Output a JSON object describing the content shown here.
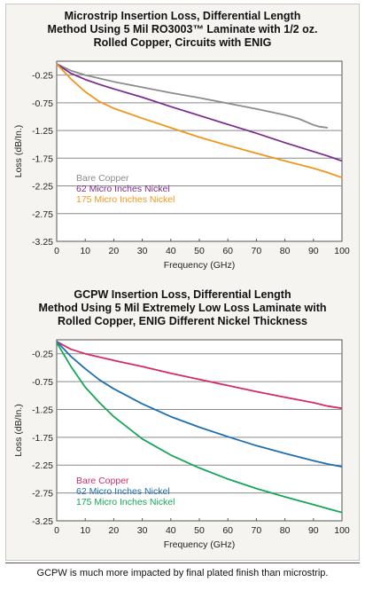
{
  "chart_data": [
    {
      "type": "line",
      "title": "Microstrip Insertion Loss, Differential Length Method Using 5 Mil RO3003™ Laminate with 1/2 oz. Rolled Copper, Circuits with ENIG",
      "title_lines": [
        "Microstrip Insertion Loss, Differential Length",
        "Method Using 5 Mil RO3003™ Laminate with 1/2 oz.",
        "Rolled Copper, Circuits with ENIG"
      ],
      "xlabel": "Frequency (GHz)",
      "ylabel": "Loss (dB/In.)",
      "xlim": [
        0,
        100
      ],
      "ylim": [
        -3.25,
        0
      ],
      "x_ticks": [
        "0",
        "10",
        "20",
        "30",
        "40",
        "50",
        "60",
        "70",
        "80",
        "90",
        "100"
      ],
      "y_ticks": [
        "-0.25",
        "-0.75",
        "-1.25",
        "-1.75",
        "-2.25",
        "-2.75",
        "-3.25"
      ],
      "grid": "horizontal",
      "legend_position": "middle-left",
      "series": [
        {
          "name": "Bare Copper",
          "color": "#8c8c8c",
          "x": [
            0,
            5,
            10,
            15,
            20,
            30,
            40,
            50,
            60,
            70,
            80,
            85,
            90,
            92,
            95
          ],
          "y": [
            -0.05,
            -0.17,
            -0.25,
            -0.31,
            -0.37,
            -0.47,
            -0.57,
            -0.66,
            -0.76,
            -0.86,
            -0.97,
            -1.04,
            -1.15,
            -1.18,
            -1.2
          ]
        },
        {
          "name": "62 Micro Inches Nickel",
          "color": "#7b2d8e",
          "x": [
            0,
            5,
            10,
            15,
            20,
            30,
            40,
            50,
            60,
            70,
            80,
            90,
            95,
            100
          ],
          "y": [
            -0.05,
            -0.22,
            -0.33,
            -0.42,
            -0.5,
            -0.65,
            -0.82,
            -0.98,
            -1.14,
            -1.3,
            -1.47,
            -1.63,
            -1.71,
            -1.8
          ]
        },
        {
          "name": "175 Micro Inches Nickel",
          "color": "#f0961e",
          "x": [
            0,
            5,
            10,
            15,
            20,
            30,
            40,
            50,
            60,
            70,
            80,
            90,
            95,
            100
          ],
          "y": [
            -0.05,
            -0.32,
            -0.55,
            -0.73,
            -0.85,
            -1.03,
            -1.2,
            -1.37,
            -1.52,
            -1.66,
            -1.8,
            -1.93,
            -2.01,
            -2.1
          ]
        }
      ]
    },
    {
      "type": "line",
      "title": "GCPW Insertion Loss, Differential Length Method Using 5 Mil Extremely Low Loss Laminate with Rolled Copper, ENIG Different Nickel Thickness",
      "title_lines": [
        "GCPW Insertion Loss, Differential Length",
        "Method Using 5 Mil Extremely Low Loss Laminate with",
        "Rolled Copper, ENIG Different Nickel Thickness"
      ],
      "xlabel": "Frequency (GHz)",
      "ylabel": "Loss (dB/In.)",
      "xlim": [
        0,
        100
      ],
      "ylim": [
        -3.25,
        0
      ],
      "x_ticks": [
        "0",
        "10",
        "20",
        "30",
        "40",
        "50",
        "60",
        "70",
        "80",
        "90",
        "100"
      ],
      "y_ticks": [
        "-0.25",
        "-0.75",
        "-1.25",
        "-1.75",
        "-2.25",
        "-2.75",
        "-3.25"
      ],
      "grid": "horizontal",
      "legend_position": "bottom-left",
      "series": [
        {
          "name": "Bare Copper",
          "color": "#d42a6a",
          "x": [
            0,
            5,
            10,
            15,
            20,
            30,
            40,
            50,
            60,
            70,
            80,
            90,
            95,
            100
          ],
          "y": [
            -0.03,
            -0.17,
            -0.25,
            -0.31,
            -0.37,
            -0.48,
            -0.6,
            -0.71,
            -0.82,
            -0.93,
            -1.03,
            -1.13,
            -1.19,
            -1.23
          ]
        },
        {
          "name": "62 Micro Inches Nickel",
          "color": "#1f6fb0",
          "x": [
            0,
            5,
            10,
            15,
            20,
            30,
            40,
            50,
            60,
            70,
            80,
            90,
            95,
            100
          ],
          "y": [
            -0.03,
            -0.3,
            -0.52,
            -0.72,
            -0.88,
            -1.15,
            -1.38,
            -1.57,
            -1.74,
            -1.9,
            -2.04,
            -2.17,
            -2.23,
            -2.28
          ]
        },
        {
          "name": "175 Micro Inches Nickel",
          "color": "#17a55a",
          "x": [
            0,
            5,
            10,
            15,
            20,
            30,
            40,
            50,
            60,
            70,
            80,
            90,
            95,
            100
          ],
          "y": [
            -0.05,
            -0.48,
            -0.85,
            -1.13,
            -1.38,
            -1.78,
            -2.07,
            -2.3,
            -2.5,
            -2.67,
            -2.82,
            -2.96,
            -3.03,
            -3.1
          ]
        }
      ]
    }
  ],
  "caption": "GCPW is much more impacted by final plated finish than microstrip."
}
